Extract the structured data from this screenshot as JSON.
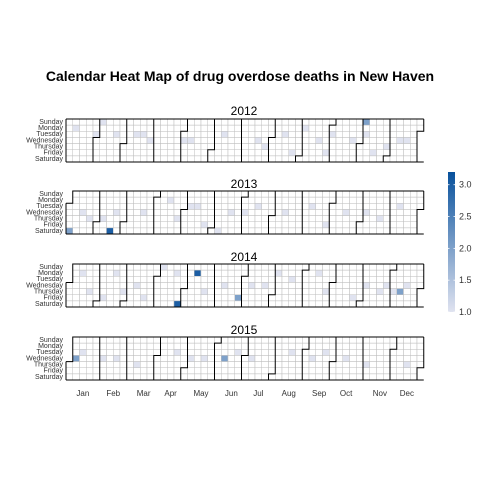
{
  "chart_data": {
    "type": "heatmap",
    "title": "Calendar Heat Map of drug overdose deaths in New Haven",
    "xlabel": "",
    "ylabel": "",
    "weekdays": [
      "Sunday",
      "Monday",
      "Tuesday",
      "Wednesday",
      "Thursday",
      "Friday",
      "Saturday"
    ],
    "months": [
      "Jan",
      "Feb",
      "Mar",
      "Apr",
      "May",
      "Jun",
      "Jul",
      "Aug",
      "Sep",
      "Oct",
      "Nov",
      "Dec"
    ],
    "legend": {
      "position": "right",
      "min": 1.0,
      "max": 3.2,
      "ticks": [
        "1.0",
        "1.5",
        "2.0",
        "2.5",
        "3.0"
      ],
      "low_color": "#e0e3f0",
      "high_color": "#08519c"
    },
    "colors": {
      "empty_cell": "#ffffff",
      "grid": "#bdbdbd",
      "month_border": "#000000"
    },
    "years": [
      {
        "year": "2012",
        "deaths": [
          {
            "date": "2012-01-09",
            "value": 1
          },
          {
            "date": "2012-01-31",
            "value": 1
          },
          {
            "date": "2012-02-05",
            "value": 1
          },
          {
            "date": "2012-02-21",
            "value": 1
          },
          {
            "date": "2012-03-13",
            "value": 1
          },
          {
            "date": "2012-03-20",
            "value": 1
          },
          {
            "date": "2012-03-28",
            "value": 1
          },
          {
            "date": "2012-05-02",
            "value": 1
          },
          {
            "date": "2012-05-09",
            "value": 1
          },
          {
            "date": "2012-06-12",
            "value": 1
          },
          {
            "date": "2012-07-18",
            "value": 1
          },
          {
            "date": "2012-07-26",
            "value": 1
          },
          {
            "date": "2012-08-14",
            "value": 1
          },
          {
            "date": "2012-08-24",
            "value": 1
          },
          {
            "date": "2012-09-03",
            "value": 1
          },
          {
            "date": "2012-09-19",
            "value": 1
          },
          {
            "date": "2012-09-28",
            "value": 1
          },
          {
            "date": "2012-10-02",
            "value": 1
          },
          {
            "date": "2012-10-24",
            "value": 1
          },
          {
            "date": "2012-11-04",
            "value": 2
          },
          {
            "date": "2012-11-06",
            "value": 1
          },
          {
            "date": "2012-11-16",
            "value": 1
          },
          {
            "date": "2012-11-29",
            "value": 1
          },
          {
            "date": "2012-12-12",
            "value": 1
          },
          {
            "date": "2012-12-19",
            "value": 1
          }
        ]
      },
      {
        "year": "2013",
        "deaths": [
          {
            "date": "2013-01-05",
            "value": 2
          },
          {
            "date": "2013-01-16",
            "value": 1
          },
          {
            "date": "2013-01-24",
            "value": 1
          },
          {
            "date": "2013-02-07",
            "value": 1
          },
          {
            "date": "2013-02-16",
            "value": 3
          },
          {
            "date": "2013-02-20",
            "value": 1
          },
          {
            "date": "2013-03-20",
            "value": 1
          },
          {
            "date": "2013-04-15",
            "value": 1
          },
          {
            "date": "2013-04-25",
            "value": 1
          },
          {
            "date": "2013-05-07",
            "value": 1
          },
          {
            "date": "2013-05-14",
            "value": 1
          },
          {
            "date": "2013-05-24",
            "value": 1
          },
          {
            "date": "2013-06-08",
            "value": 1
          },
          {
            "date": "2013-06-19",
            "value": 1
          },
          {
            "date": "2013-07-03",
            "value": 1
          },
          {
            "date": "2013-07-16",
            "value": 1
          },
          {
            "date": "2013-08-14",
            "value": 1
          },
          {
            "date": "2013-09-10",
            "value": 1
          },
          {
            "date": "2013-09-27",
            "value": 1
          },
          {
            "date": "2013-10-16",
            "value": 1
          },
          {
            "date": "2013-11-06",
            "value": 1
          },
          {
            "date": "2013-11-21",
            "value": 1
          },
          {
            "date": "2013-12-10",
            "value": 1
          }
        ]
      },
      {
        "year": "2014",
        "deaths": [
          {
            "date": "2014-01-13",
            "value": 1
          },
          {
            "date": "2014-01-23",
            "value": 1
          },
          {
            "date": "2014-02-07",
            "value": 1
          },
          {
            "date": "2014-02-17",
            "value": 1
          },
          {
            "date": "2014-02-27",
            "value": 1
          },
          {
            "date": "2014-03-12",
            "value": 1
          },
          {
            "date": "2014-03-21",
            "value": 1
          },
          {
            "date": "2014-04-06",
            "value": 1
          },
          {
            "date": "2014-04-21",
            "value": 1
          },
          {
            "date": "2014-04-26",
            "value": 3
          },
          {
            "date": "2014-05-12",
            "value": 3
          },
          {
            "date": "2014-05-22",
            "value": 1
          },
          {
            "date": "2014-06-11",
            "value": 1
          },
          {
            "date": "2014-06-27",
            "value": 2
          },
          {
            "date": "2014-07-09",
            "value": 1
          },
          {
            "date": "2014-07-23",
            "value": 1
          },
          {
            "date": "2014-08-04",
            "value": 1
          },
          {
            "date": "2014-08-19",
            "value": 1
          },
          {
            "date": "2014-09-15",
            "value": 1
          },
          {
            "date": "2014-09-25",
            "value": 1
          },
          {
            "date": "2014-10-24",
            "value": 1
          },
          {
            "date": "2014-11-05",
            "value": 1
          },
          {
            "date": "2014-11-20",
            "value": 1
          },
          {
            "date": "2014-11-26",
            "value": 1
          },
          {
            "date": "2014-12-04",
            "value": 1
          },
          {
            "date": "2014-12-11",
            "value": 2
          },
          {
            "date": "2014-12-17",
            "value": 1
          }
        ]
      },
      {
        "year": "2015",
        "deaths": [
          {
            "date": "2015-01-07",
            "value": 2
          },
          {
            "date": "2015-01-13",
            "value": 1
          },
          {
            "date": "2015-02-04",
            "value": 1
          },
          {
            "date": "2015-02-18",
            "value": 1
          },
          {
            "date": "2015-03-12",
            "value": 1
          },
          {
            "date": "2015-04-21",
            "value": 1
          },
          {
            "date": "2015-05-06",
            "value": 1
          },
          {
            "date": "2015-05-20",
            "value": 1
          },
          {
            "date": "2015-06-10",
            "value": 2
          },
          {
            "date": "2015-06-23",
            "value": 1
          },
          {
            "date": "2015-07-08",
            "value": 1
          },
          {
            "date": "2015-08-18",
            "value": 1
          },
          {
            "date": "2015-09-09",
            "value": 1
          },
          {
            "date": "2015-09-22",
            "value": 1
          },
          {
            "date": "2015-10-14",
            "value": 1
          },
          {
            "date": "2015-11-05",
            "value": 1
          },
          {
            "date": "2015-12-17",
            "value": 1
          }
        ]
      }
    ]
  }
}
